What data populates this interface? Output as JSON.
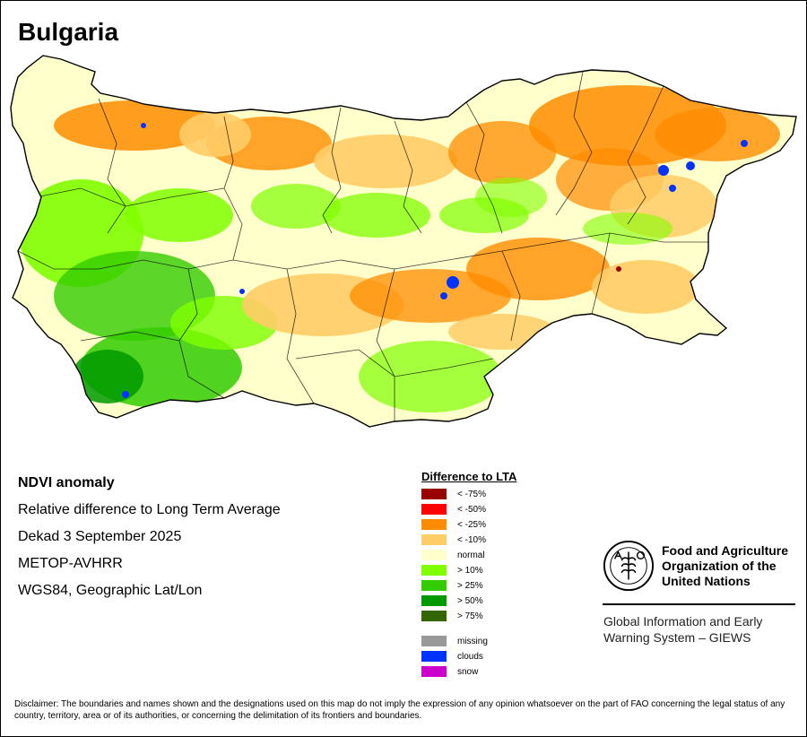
{
  "map": {
    "title": "Bulgaria",
    "region": "Bulgaria"
  },
  "info": {
    "product": "NDVI anomaly",
    "description": "Relative difference to Long Term Average",
    "period": "Dekad 3 September 2025",
    "sensor": "METOP-AVHRR",
    "projection": "WGS84, Geographic Lat/Lon"
  },
  "legend": {
    "title": "Difference to LTA",
    "classes": [
      {
        "label": "< -75%",
        "color": "#990000"
      },
      {
        "label": "< -50%",
        "color": "#ff0000"
      },
      {
        "label": "< -25%",
        "color": "#ff8c00"
      },
      {
        "label": "< -10%",
        "color": "#ffcc66"
      },
      {
        "label": "normal",
        "color": "#ffffcc"
      },
      {
        "label": "> 10%",
        "color": "#80ff00"
      },
      {
        "label": "> 25%",
        "color": "#33cc00"
      },
      {
        "label": "> 50%",
        "color": "#009900"
      },
      {
        "label": "> 75%",
        "color": "#336600"
      }
    ],
    "extra": [
      {
        "label": "missing",
        "color": "#999999"
      },
      {
        "label": "clouds",
        "color": "#0033ff"
      },
      {
        "label": "snow",
        "color": "#cc00cc"
      }
    ]
  },
  "fao": {
    "name_line1": "Food and Agriculture",
    "name_line2": "Organization of the",
    "name_line3": "United Nations",
    "giews_line1": "Global Information and Early",
    "giews_line2": "Warning System – GIEWS"
  },
  "disclaimer": "Disclaimer: The boundaries and names shown and the designations used on this map do not imply the expression of any opinion whatsoever on the part of FAO concerning the legal status of any country, territory, area or of its authorities, or concerning the delimitation of its frontiers and boundaries."
}
